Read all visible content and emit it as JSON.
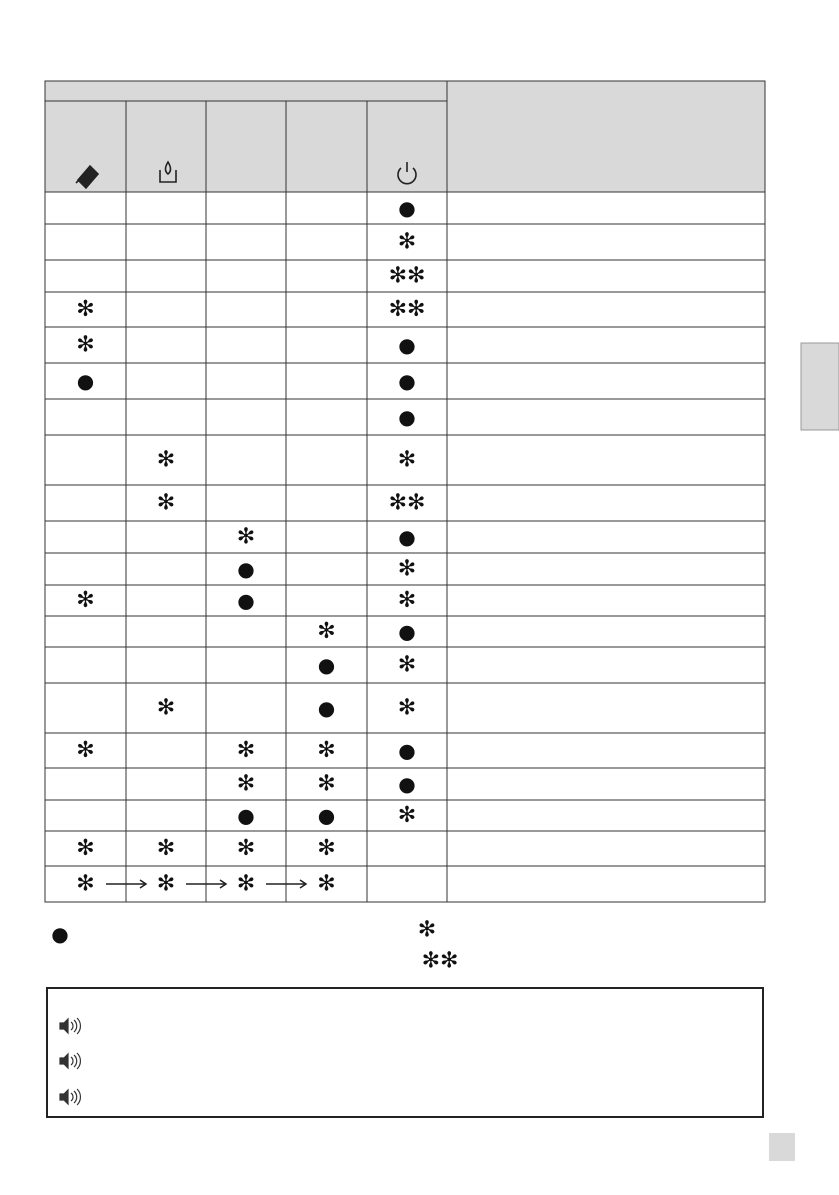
{
  "table": {
    "rows": [
      [
        null,
        null,
        null,
        null,
        "●"
      ],
      [
        null,
        null,
        null,
        null,
        "✻"
      ],
      [
        null,
        null,
        null,
        null,
        "✻✻"
      ],
      [
        "✻",
        null,
        null,
        null,
        "✻✻"
      ],
      [
        "✻",
        null,
        null,
        null,
        "●"
      ],
      [
        "●",
        null,
        null,
        null,
        "●"
      ],
      [
        null,
        null,
        null,
        null,
        "●"
      ],
      [
        null,
        "✻",
        null,
        null,
        "✻"
      ],
      [
        null,
        "✻",
        null,
        null,
        "✻✻"
      ],
      [
        null,
        null,
        "✻",
        null,
        "●"
      ],
      [
        null,
        null,
        "●",
        null,
        "✻"
      ],
      [
        "✻",
        null,
        "●",
        null,
        "✻"
      ],
      [
        null,
        null,
        null,
        "✻",
        "●"
      ],
      [
        null,
        null,
        null,
        "●",
        "✻"
      ],
      [
        null,
        "✻",
        null,
        "●",
        "✻"
      ],
      [
        "✻",
        null,
        "✻",
        "✻",
        "●"
      ],
      [
        null,
        null,
        "✻",
        "✻",
        "●"
      ],
      [
        null,
        null,
        "●",
        "●",
        "✻"
      ],
      [
        "✻",
        "✻",
        "✻",
        "✻",
        null
      ],
      [
        "✻",
        "✻",
        "✻",
        "✻",
        null
      ]
    ]
  },
  "legend": {
    "left": "●",
    "right": [
      "✻",
      "✻✻"
    ]
  }
}
